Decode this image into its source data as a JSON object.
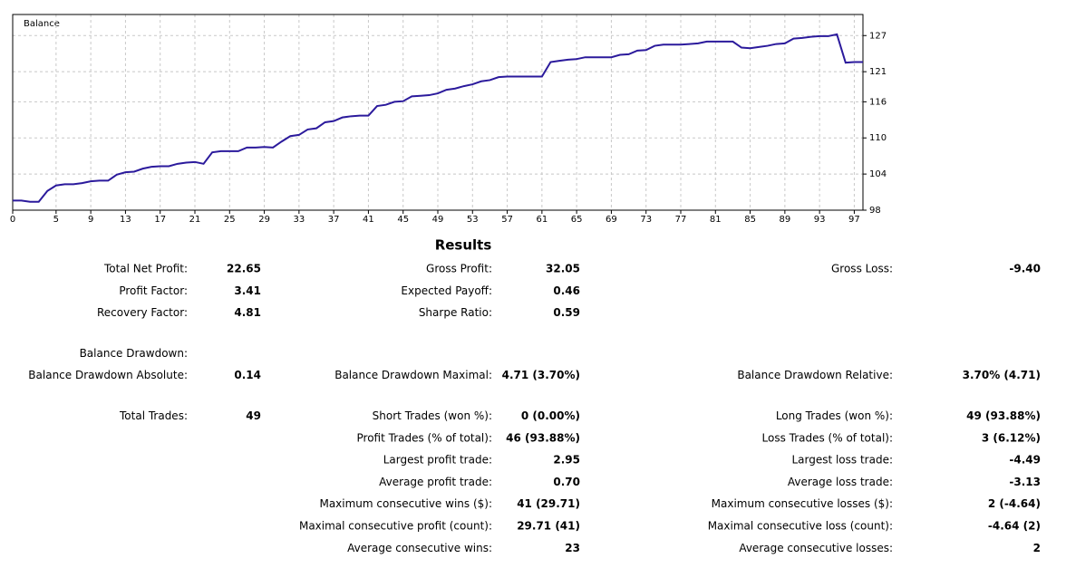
{
  "chart_data": {
    "type": "line",
    "title": "Balance",
    "x": [
      0,
      1,
      2,
      3,
      4,
      5,
      6,
      7,
      8,
      9,
      10,
      11,
      12,
      13,
      14,
      15,
      16,
      17,
      18,
      19,
      20,
      21,
      22,
      23,
      24,
      25,
      26,
      27,
      28,
      29,
      30,
      31,
      32,
      33,
      34,
      35,
      36,
      37,
      38,
      39,
      40,
      41,
      42,
      43,
      44,
      45,
      46,
      47,
      48,
      49,
      50,
      51,
      52,
      53,
      54,
      55,
      56,
      57,
      58,
      59,
      60,
      61,
      62,
      63,
      64,
      65,
      66,
      67,
      68,
      69,
      70,
      71,
      72,
      73,
      74,
      75,
      76,
      77,
      78,
      79,
      80,
      81,
      82,
      83,
      84,
      85,
      86,
      87,
      88,
      89,
      90,
      91,
      92,
      93,
      94,
      95,
      96,
      97,
      98
    ],
    "series": [
      {
        "name": "Balance",
        "color": "#2b1a9c",
        "values": [
          99.6,
          99.6,
          99.4,
          99.4,
          101.2,
          102.1,
          102.3,
          102.3,
          102.5,
          102.8,
          102.9,
          102.9,
          103.9,
          104.3,
          104.4,
          104.9,
          105.2,
          105.3,
          105.3,
          105.7,
          105.9,
          106.0,
          105.7,
          107.6,
          107.8,
          107.8,
          107.8,
          108.4,
          108.4,
          108.5,
          108.4,
          109.4,
          110.3,
          110.5,
          111.4,
          111.6,
          112.6,
          112.8,
          113.4,
          113.6,
          113.7,
          113.7,
          115.3,
          115.5,
          116.0,
          116.1,
          116.9,
          117.0,
          117.1,
          117.4,
          118.0,
          118.2,
          118.6,
          118.9,
          119.4,
          119.6,
          120.1,
          120.2,
          120.2,
          120.2,
          120.2,
          120.2,
          122.6,
          122.8,
          123.0,
          123.1,
          123.4,
          123.4,
          123.4,
          123.4,
          123.8,
          123.9,
          124.5,
          124.6,
          125.3,
          125.5,
          125.5,
          125.5,
          125.6,
          125.7,
          126.0,
          126.0,
          126.0,
          126.0,
          125.0,
          124.9,
          125.1,
          125.3,
          125.6,
          125.7,
          126.5,
          126.6,
          126.8,
          126.9,
          126.9,
          127.2,
          122.5,
          122.6,
          122.6
        ]
      }
    ],
    "xlim": [
      0,
      98
    ],
    "xticks": [
      0,
      5,
      9,
      13,
      17,
      21,
      25,
      29,
      33,
      37,
      41,
      45,
      49,
      53,
      57,
      61,
      65,
      69,
      73,
      77,
      81,
      85,
      89,
      93,
      97
    ],
    "ylim": [
      98,
      130.5
    ],
    "yticks": [
      98,
      104,
      110,
      116,
      121,
      127
    ],
    "grid": true
  },
  "results": {
    "title": "Results",
    "sections": [
      [
        [
          "Total Net Profit:",
          "22.65",
          "Gross Profit:",
          "32.05",
          "Gross Loss:",
          "-9.40"
        ],
        [
          "Profit Factor:",
          "3.41",
          "Expected Payoff:",
          "0.46",
          null,
          null
        ],
        [
          "Recovery Factor:",
          "4.81",
          "Sharpe Ratio:",
          "0.59",
          null,
          null
        ]
      ],
      [
        [
          "Balance Drawdown:",
          null,
          null,
          null,
          null,
          null
        ],
        [
          "Balance Drawdown Absolute:",
          "0.14",
          "Balance Drawdown Maximal:",
          "4.71 (3.70%)",
          "Balance Drawdown Relative:",
          "3.70% (4.71)"
        ]
      ],
      [
        [
          "Total Trades:",
          "49",
          "Short Trades (won %):",
          "0 (0.00%)",
          "Long Trades (won %):",
          "49 (93.88%)"
        ],
        [
          null,
          null,
          "Profit Trades (% of total):",
          "46 (93.88%)",
          "Loss Trades (% of total):",
          "3 (6.12%)"
        ],
        [
          null,
          null,
          "Largest profit trade:",
          "2.95",
          "Largest loss trade:",
          "-4.49"
        ],
        [
          null,
          null,
          "Average profit trade:",
          "0.70",
          "Average loss trade:",
          "-3.13"
        ],
        [
          null,
          null,
          "Maximum consecutive wins ($):",
          "41 (29.71)",
          "Maximum consecutive losses ($):",
          "2 (-4.64)"
        ],
        [
          null,
          null,
          "Maximal consecutive profit (count):",
          "29.71 (41)",
          "Maximal consecutive loss (count):",
          "-4.64 (2)"
        ],
        [
          null,
          null,
          "Average consecutive wins:",
          "23",
          "Average consecutive losses:",
          "2"
        ]
      ]
    ]
  }
}
